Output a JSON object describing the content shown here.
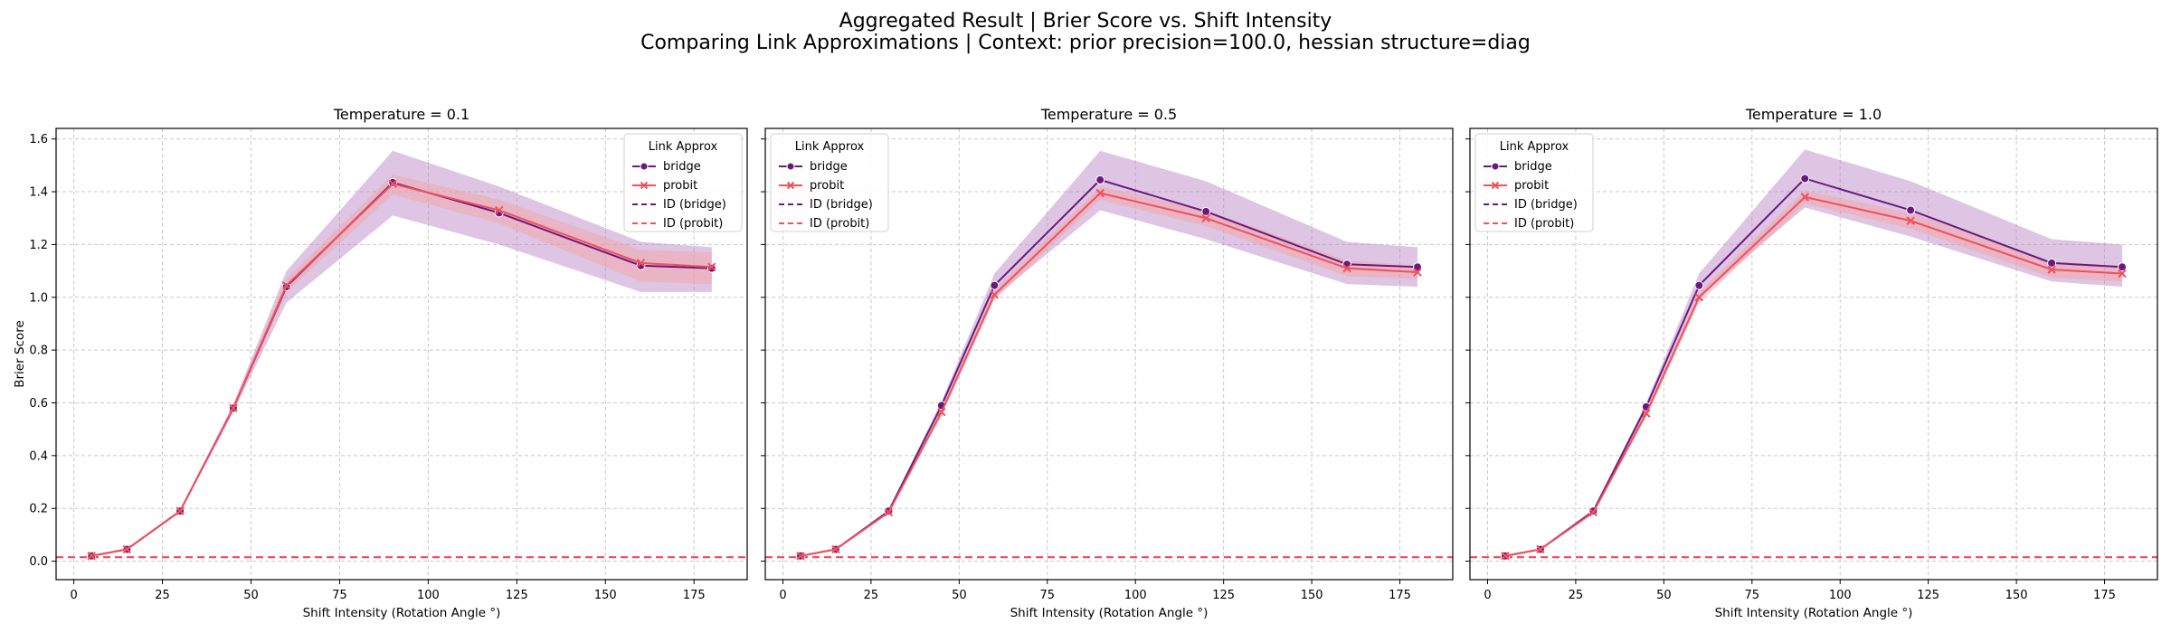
{
  "figure": {
    "title": "Aggregated Result | Brier Score vs. Shift Intensity",
    "subtitle": "Comparing Link Approximations | Context: prior precision=100.0, hessian structure=diag"
  },
  "colors": {
    "bridge": "#6a1a7e",
    "probit": "#f1505c",
    "bridge_band": "#b47fc0",
    "probit_band": "#f5a3a5",
    "grid": "#c8c8c8"
  },
  "chart_data": [
    {
      "type": "line",
      "title": "Temperature = 0.1",
      "xlabel": "Shift Intensity (Rotation Angle °)",
      "ylabel": "Brier Score",
      "xlim": [
        -5,
        190
      ],
      "ylim": [
        -0.07,
        1.64
      ],
      "xticks": [
        0,
        25,
        50,
        75,
        100,
        125,
        150,
        175
      ],
      "yticks": [
        0.0,
        0.2,
        0.4,
        0.6,
        0.8,
        1.0,
        1.2,
        1.4,
        1.6
      ],
      "grid": true,
      "legend": {
        "title": "Link Approx",
        "placement": "top-right",
        "entries": [
          "bridge",
          "probit",
          "ID (bridge)",
          "ID (probit)"
        ]
      },
      "x": [
        5,
        15,
        30,
        45,
        60,
        90,
        120,
        160,
        180
      ],
      "series": [
        {
          "name": "bridge",
          "marker": "circle",
          "values": [
            0.02,
            0.045,
            0.19,
            0.58,
            1.04,
            1.435,
            1.32,
            1.12,
            1.11
          ],
          "ci_low": [
            0.018,
            0.042,
            0.185,
            0.565,
            0.98,
            1.31,
            1.2,
            1.02,
            1.02
          ],
          "ci_high": [
            0.022,
            0.048,
            0.195,
            0.595,
            1.1,
            1.555,
            1.42,
            1.21,
            1.19
          ]
        },
        {
          "name": "probit",
          "marker": "x",
          "values": [
            0.02,
            0.045,
            0.19,
            0.58,
            1.045,
            1.43,
            1.33,
            1.13,
            1.115
          ],
          "ci_low": [
            0.018,
            0.042,
            0.185,
            0.57,
            1.02,
            1.39,
            1.28,
            1.06,
            1.05
          ],
          "ci_high": [
            0.022,
            0.048,
            0.195,
            0.59,
            1.07,
            1.465,
            1.37,
            1.18,
            1.17
          ]
        }
      ],
      "id_lines": [
        {
          "name": "ID (bridge)",
          "value": 0.015
        },
        {
          "name": "ID (probit)",
          "value": 0.015
        }
      ]
    },
    {
      "type": "line",
      "title": "Temperature = 0.5",
      "xlabel": "Shift Intensity (Rotation Angle °)",
      "ylabel": "",
      "xlim": [
        -5,
        190
      ],
      "ylim": [
        -0.07,
        1.64
      ],
      "xticks": [
        0,
        25,
        50,
        75,
        100,
        125,
        150,
        175
      ],
      "yticks": [
        0.0,
        0.2,
        0.4,
        0.6,
        0.8,
        1.0,
        1.2,
        1.4,
        1.6
      ],
      "grid": true,
      "legend": {
        "title": "Link Approx",
        "placement": "top-left",
        "entries": [
          "bridge",
          "probit",
          "ID (bridge)",
          "ID (probit)"
        ]
      },
      "x": [
        5,
        15,
        30,
        45,
        60,
        90,
        120,
        160,
        180
      ],
      "series": [
        {
          "name": "bridge",
          "marker": "circle",
          "values": [
            0.02,
            0.045,
            0.19,
            0.59,
            1.045,
            1.445,
            1.325,
            1.125,
            1.115
          ],
          "ci_low": [
            0.018,
            0.042,
            0.185,
            0.575,
            1.0,
            1.33,
            1.22,
            1.05,
            1.04
          ],
          "ci_high": [
            0.022,
            0.048,
            0.195,
            0.605,
            1.09,
            1.555,
            1.44,
            1.21,
            1.19
          ]
        },
        {
          "name": "probit",
          "marker": "x",
          "values": [
            0.02,
            0.045,
            0.185,
            0.565,
            1.01,
            1.395,
            1.3,
            1.11,
            1.095
          ],
          "ci_low": [
            0.018,
            0.042,
            0.18,
            0.55,
            0.99,
            1.37,
            1.27,
            1.08,
            1.07
          ],
          "ci_high": [
            0.022,
            0.048,
            0.19,
            0.58,
            1.03,
            1.42,
            1.33,
            1.14,
            1.12
          ]
        }
      ],
      "id_lines": [
        {
          "name": "ID (bridge)",
          "value": 0.015
        },
        {
          "name": "ID (probit)",
          "value": 0.015
        }
      ]
    },
    {
      "type": "line",
      "title": "Temperature = 1.0",
      "xlabel": "Shift Intensity (Rotation Angle °)",
      "ylabel": "",
      "xlim": [
        -5,
        190
      ],
      "ylim": [
        -0.07,
        1.64
      ],
      "xticks": [
        0,
        25,
        50,
        75,
        100,
        125,
        150,
        175
      ],
      "yticks": [
        0.0,
        0.2,
        0.4,
        0.6,
        0.8,
        1.0,
        1.2,
        1.4,
        1.6
      ],
      "grid": true,
      "legend": {
        "title": "Link Approx",
        "placement": "top-left",
        "entries": [
          "bridge",
          "probit",
          "ID (bridge)",
          "ID (probit)"
        ]
      },
      "x": [
        5,
        15,
        30,
        45,
        60,
        90,
        120,
        160,
        180
      ],
      "series": [
        {
          "name": "bridge",
          "marker": "circle",
          "values": [
            0.02,
            0.045,
            0.19,
            0.585,
            1.045,
            1.45,
            1.33,
            1.13,
            1.115
          ],
          "ci_low": [
            0.018,
            0.042,
            0.185,
            0.57,
            1.0,
            1.34,
            1.23,
            1.06,
            1.04
          ],
          "ci_high": [
            0.022,
            0.048,
            0.195,
            0.6,
            1.09,
            1.56,
            1.44,
            1.22,
            1.2
          ]
        },
        {
          "name": "probit",
          "marker": "x",
          "values": [
            0.02,
            0.045,
            0.185,
            0.56,
            1.0,
            1.38,
            1.29,
            1.105,
            1.09
          ],
          "ci_low": [
            0.018,
            0.042,
            0.18,
            0.545,
            0.98,
            1.355,
            1.26,
            1.075,
            1.06
          ],
          "ci_high": [
            0.022,
            0.048,
            0.19,
            0.575,
            1.02,
            1.405,
            1.32,
            1.135,
            1.12
          ]
        }
      ],
      "id_lines": [
        {
          "name": "ID (bridge)",
          "value": 0.015
        },
        {
          "name": "ID (probit)",
          "value": 0.015
        }
      ]
    }
  ]
}
